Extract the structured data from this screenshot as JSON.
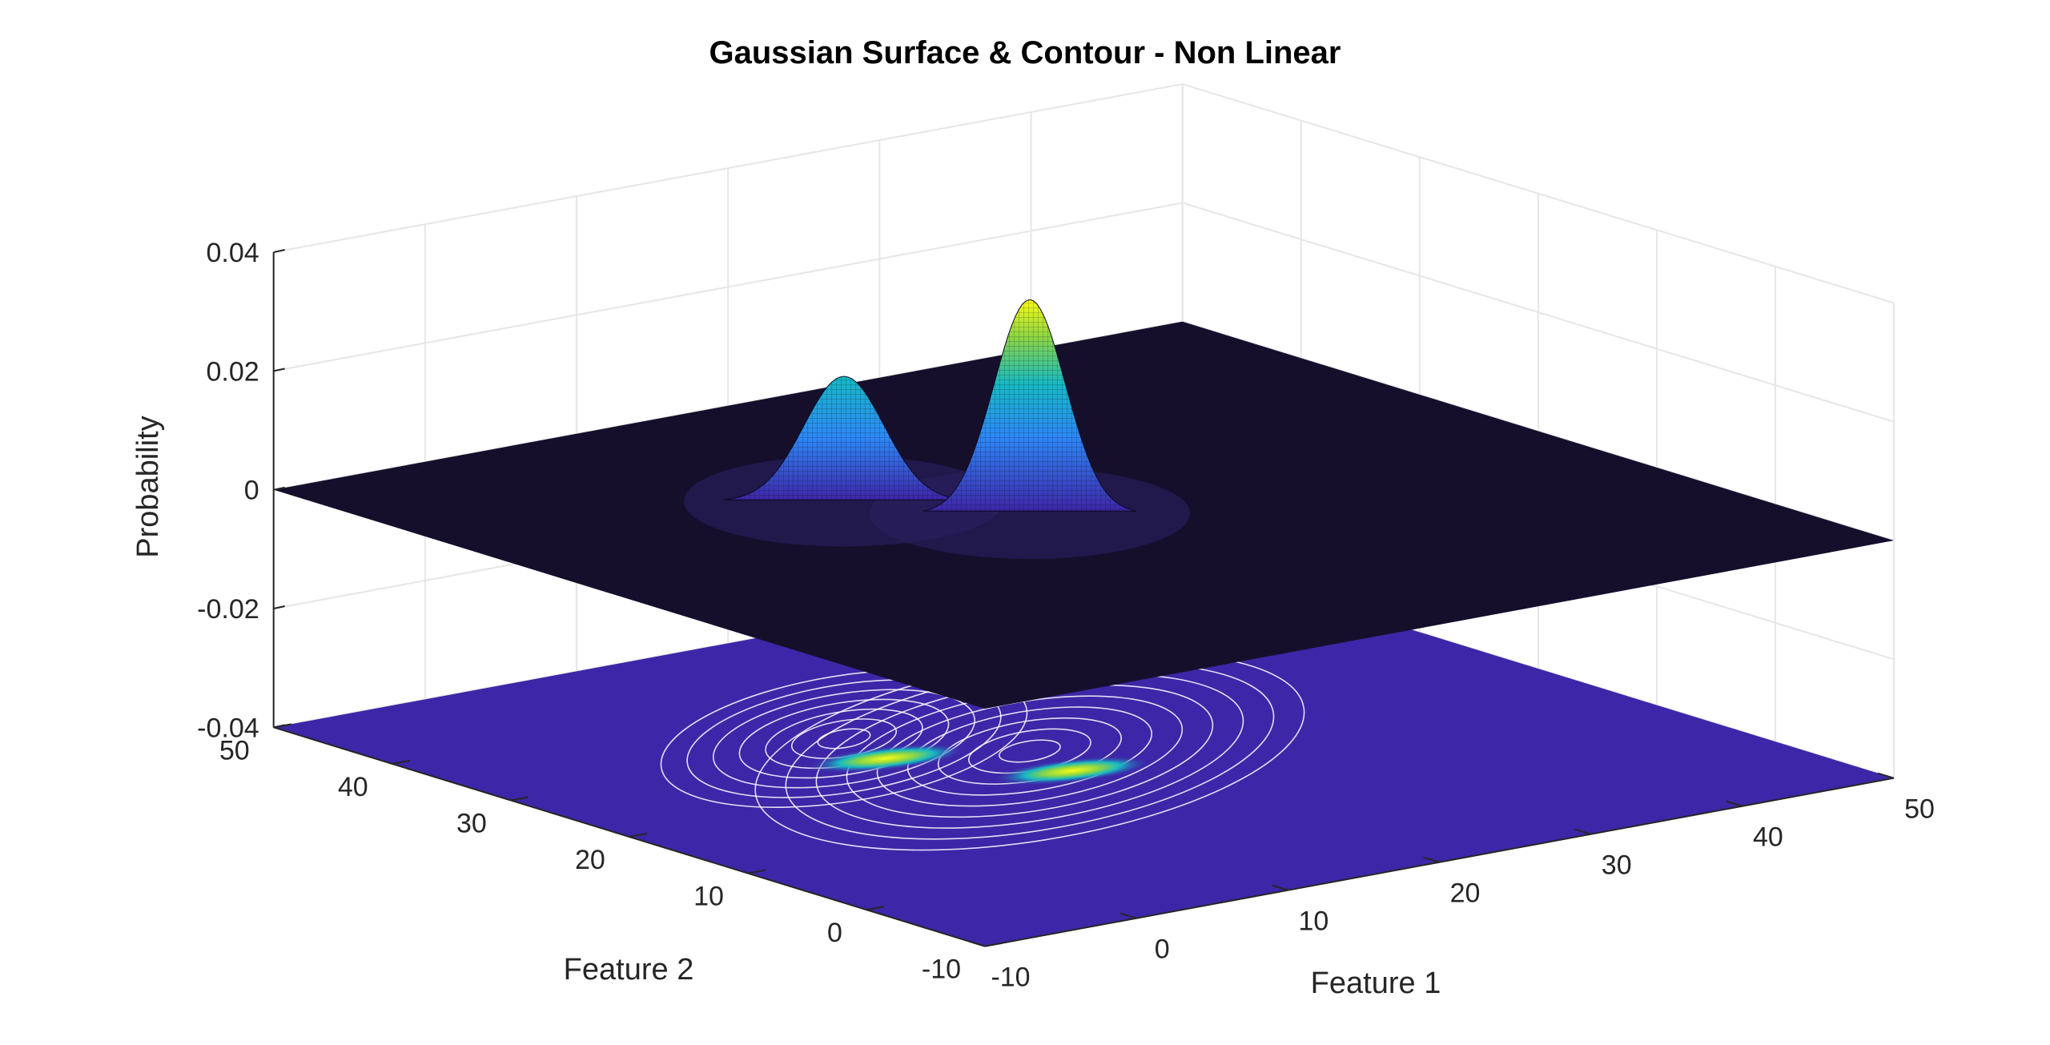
{
  "chart_data": {
    "type": "surface",
    "title": "Gaussian Surface & Contour - Non Linear",
    "xlabel": "Feature 1",
    "ylabel": "Feature 2",
    "zlabel": "Probability",
    "xlim": [
      -10,
      50
    ],
    "ylim": [
      -10,
      50
    ],
    "zlim": [
      -0.04,
      0.04
    ],
    "x_ticks": [
      -10,
      0,
      10,
      20,
      30,
      40,
      50
    ],
    "y_ticks": [
      -10,
      0,
      10,
      20,
      30,
      40,
      50
    ],
    "z_ticks": [
      "-0.04",
      "-0.02",
      "0",
      "0.02",
      "0.04"
    ],
    "grid": true,
    "contour_plane_z": -0.04,
    "components": [
      {
        "name": "",
        "mean": [
          18,
          22
        ],
        "peak": 0.036
      },
      {
        "name": "",
        "mean": [
          12,
          30
        ],
        "peak": 0.021
      }
    ],
    "colormap": [
      "#3e26a8",
      "#2e87f7",
      "#16b9c4",
      "#8bd646",
      "#f9fb15"
    ]
  }
}
